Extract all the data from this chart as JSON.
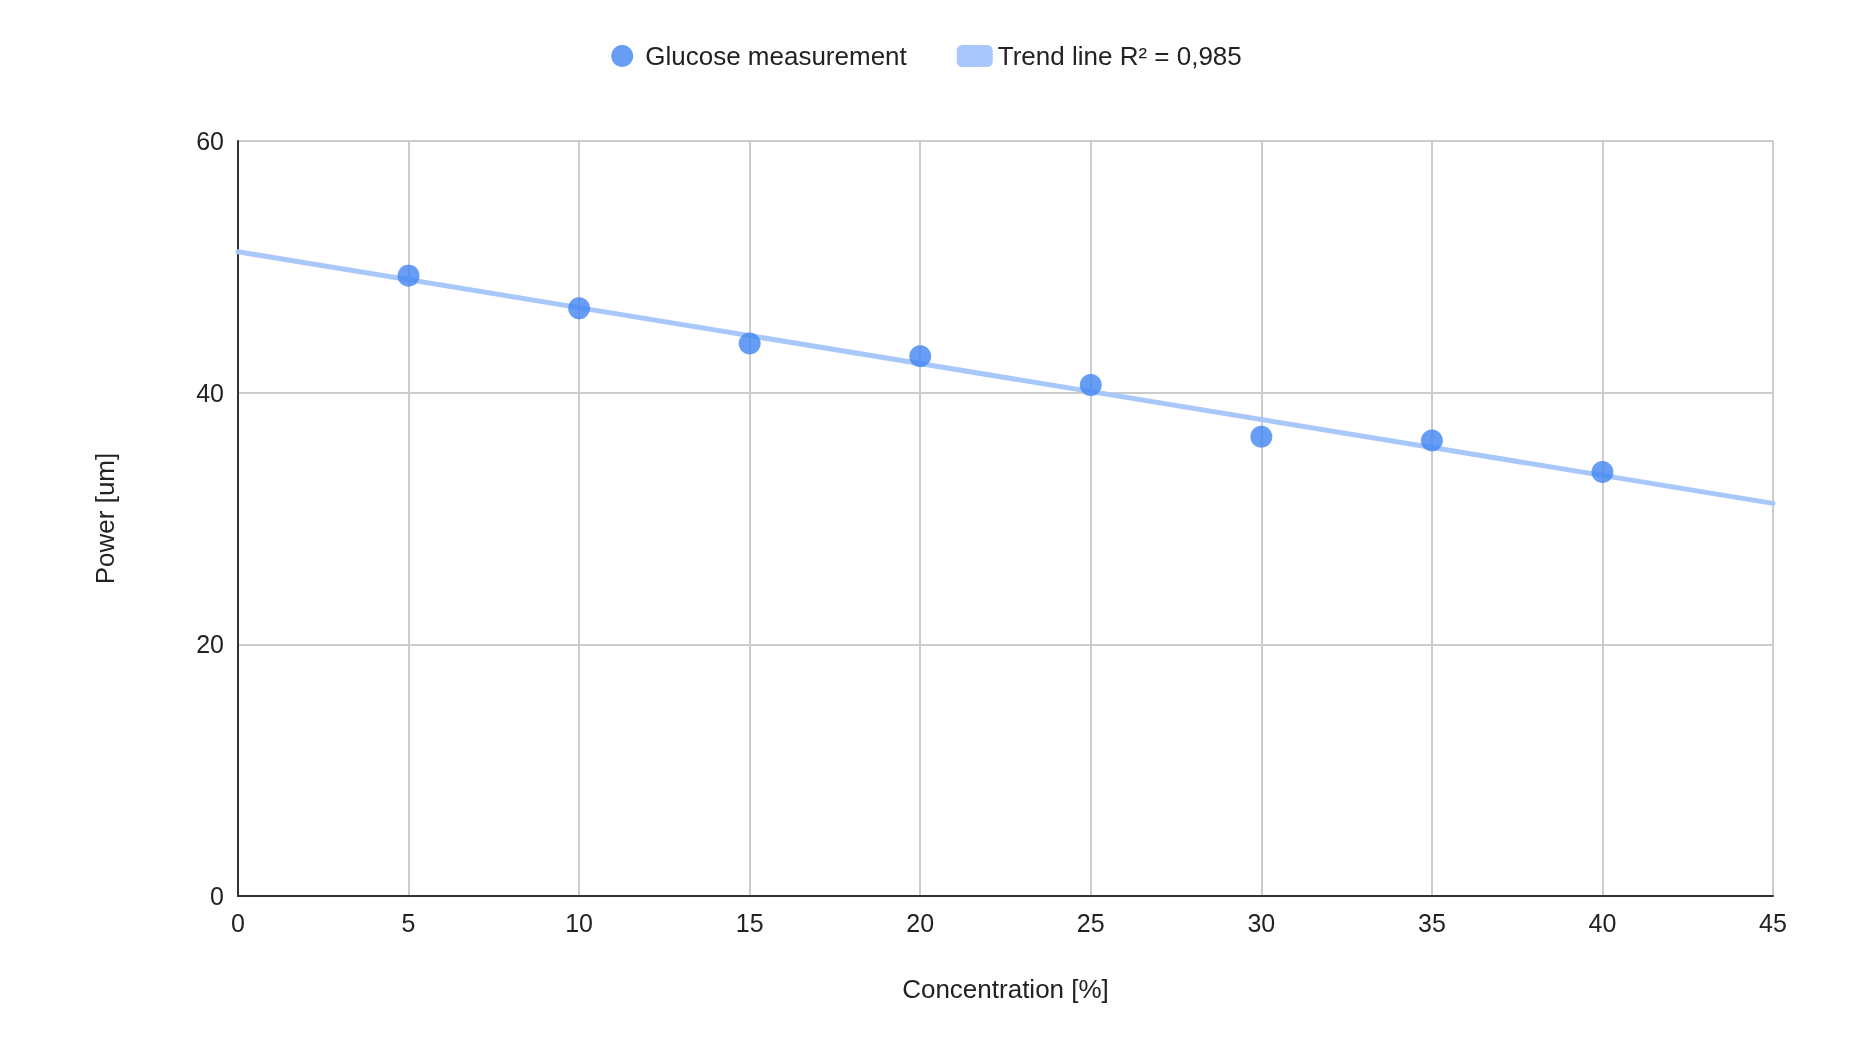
{
  "chart_data": {
    "type": "scatter",
    "xlabel": "Concentration [%]",
    "ylabel": "Power [um]",
    "xlim": [
      0,
      45
    ],
    "xticks": [
      0,
      5,
      10,
      15,
      20,
      25,
      30,
      35,
      40,
      45
    ],
    "ylim": [
      0,
      60
    ],
    "yticks": [
      0,
      20,
      40,
      60
    ],
    "grid": true,
    "legend": "top",
    "series": [
      {
        "name": "Glucose measurement",
        "marker": "circle",
        "color": "#4285f4",
        "x": [
          5,
          10,
          15,
          20,
          25,
          30,
          35,
          40
        ],
        "values": [
          49.3,
          46.7,
          43.9,
          42.9,
          40.6,
          36.5,
          36.2,
          33.7
        ]
      },
      {
        "name": "Trend line R² = 0,985",
        "type": "line",
        "marker": "none",
        "color": "#a8c7fa",
        "x": [
          0,
          45
        ],
        "values": [
          51.2,
          31.2
        ]
      }
    ]
  }
}
